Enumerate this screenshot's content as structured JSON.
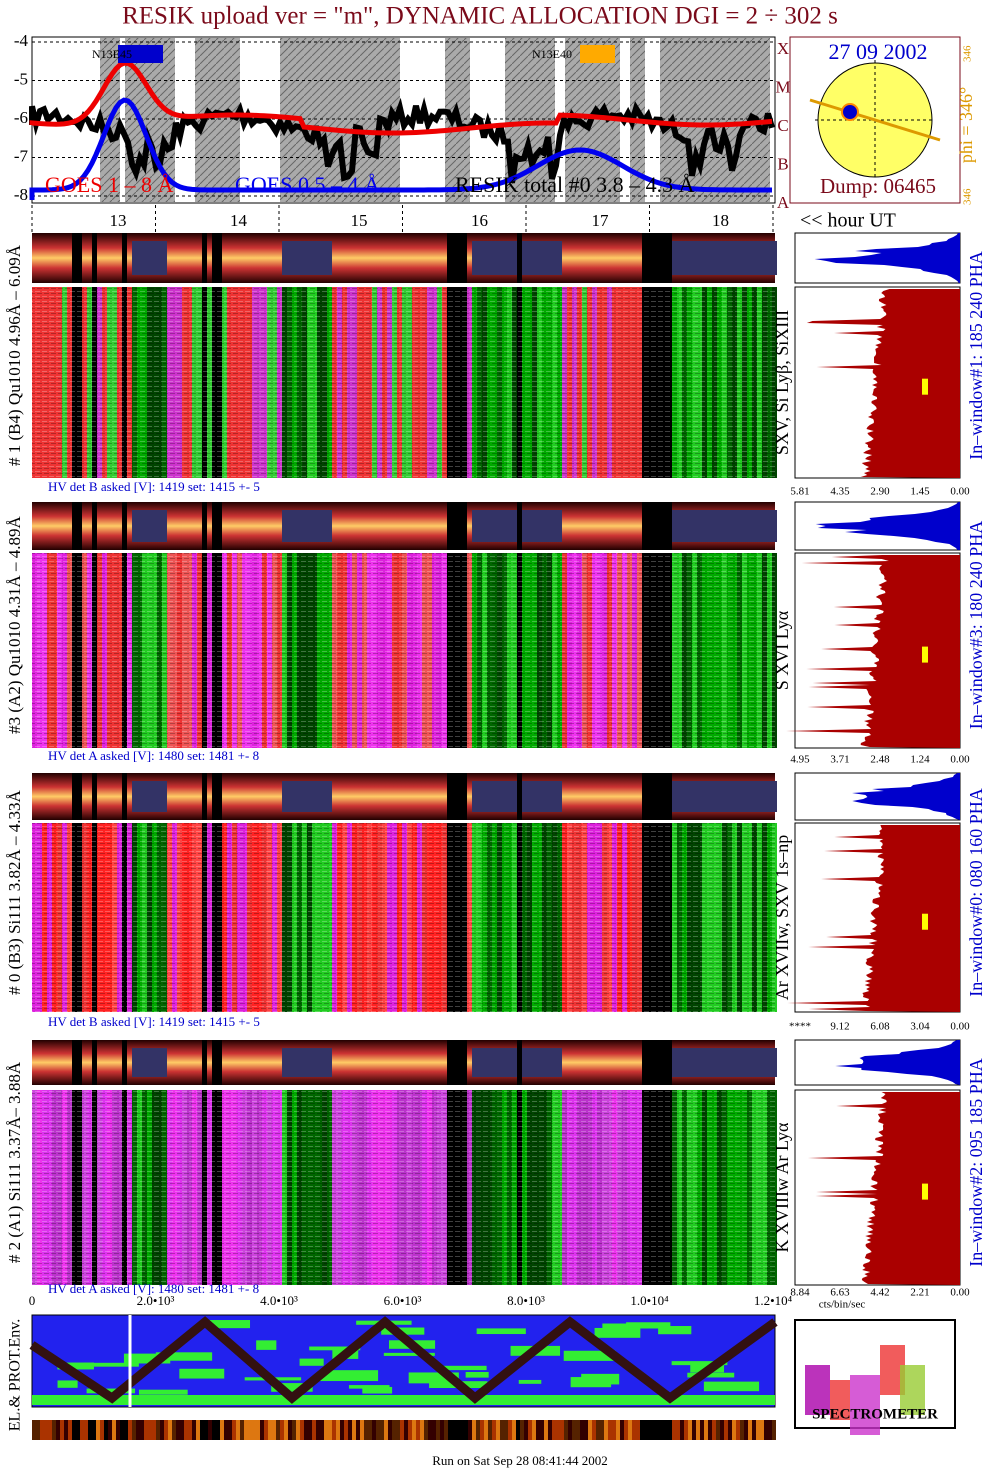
{
  "header": {
    "title": "RESIK upload ver = \"m\", DYNAMIC ALLOCATION  DGI =   2 ÷ 302 s"
  },
  "goes_panel": {
    "yticks": [
      "-4",
      "-5",
      "-6",
      "-7",
      "-8"
    ],
    "class_labels": [
      "X",
      "M",
      "C",
      "B",
      "A"
    ],
    "regions": [
      "N13E45",
      "N13E40"
    ],
    "legend": [
      "GOES 1 – 8 Å",
      "GOES 0.5 – 4 Å",
      "RESIK total #0  3.8 – 4.3 Å"
    ]
  },
  "sun_panel": {
    "date": "27 09 2002",
    "phi": "phi = 346°",
    "phi_top": "346",
    "phi_bottom": "346",
    "dump": "Dump: 06465"
  },
  "time_axis": {
    "hours": [
      "13",
      "14",
      "15",
      "16",
      "17",
      "18"
    ],
    "unit": "<< hour UT"
  },
  "channels": [
    {
      "label": "# 1 (B4) Qu1010 4.96Å – 6.09Å",
      "hv": "HV det B asked [V]:  1419 set:  1415 +-  5",
      "lines": "SXV, Si Lyβ, SiXIII",
      "window": "In–window#1:  185 240 PHA",
      "ticks": [
        "5.81",
        "4.35",
        "2.90",
        "1.45",
        "0.00"
      ]
    },
    {
      "label": "#3 (A2) Qu1010  4.31Å – 4.89Å",
      "hv": "HV det A asked [V]:  1480 set:  1481 +-  8",
      "lines": "S XVI Lyα",
      "window": "In–window#3:  180 240 PHA",
      "ticks": [
        "4.95",
        "3.71",
        "2.48",
        "1.24",
        "0.00"
      ]
    },
    {
      "label": "# 0 (B3) Si111  3.82Å – 4.33Å",
      "hv": "HV det B asked [V]:  1419 set:  1415 +-  5",
      "lines": "Ar XVIIw,  SXV 1s–np",
      "window": "In–window#0:  080 160 PHA",
      "ticks": [
        "****",
        "9.12",
        "6.08",
        "3.04",
        "0.00"
      ]
    },
    {
      "label": "# 2 (A1) Si111  3.37Å– 3.88Å",
      "hv": "HV det A asked [V]:  1480 set:  1481 +-  8",
      "lines": "K XVIIIw  Ar Lyα",
      "window": "In–window#2:  095 185 PHA",
      "ticks": [
        "8.84",
        "6.63",
        "4.42",
        "2.21",
        "0.00"
      ]
    }
  ],
  "histogram_unit": "cts/bin/sec",
  "env_panel": {
    "xticks": [
      "0",
      "2.0•10³",
      "4.0•10³",
      "6.0•10³",
      "8.0•10³",
      "1.0•10⁴",
      "1.2•10⁴"
    ],
    "label": "EL.& PROT.Env."
  },
  "logo": {
    "text": "SPECTROMETER"
  },
  "footer": {
    "run": "Run on Sat Sep 28 08:41:44 2002"
  }
}
